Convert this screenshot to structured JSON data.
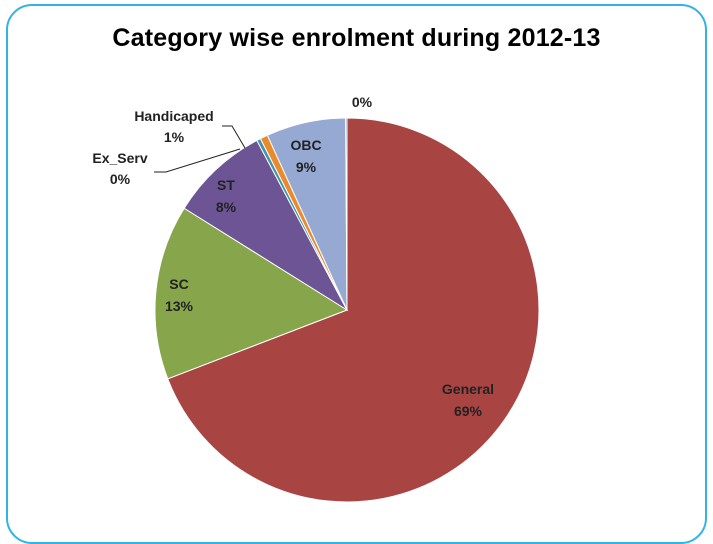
{
  "chart_data": {
    "type": "pie",
    "title": "Category wise enrolment during 2012-13",
    "slices": [
      {
        "label": "General",
        "value": 69,
        "display": "69%",
        "color": "#a84442"
      },
      {
        "label": "SC",
        "value": 13,
        "display": "13%",
        "color": "#87a54a"
      },
      {
        "label": "ST",
        "value": 8,
        "display": "8%",
        "color": "#6c5495"
      },
      {
        "label": "Ex_Serv",
        "value": 0,
        "display": "0%",
        "color": "#3f95ad"
      },
      {
        "label": "Handicaped",
        "value": 1,
        "display": "1%",
        "color": "#e98a2c"
      },
      {
        "label": "OBC",
        "value": 9,
        "display": "9%",
        "color": "#95a9d3"
      },
      {
        "label": "",
        "value": 0,
        "display": "0%",
        "color": "#4a6fa5"
      }
    ],
    "frame_color": "#33b2e6"
  }
}
